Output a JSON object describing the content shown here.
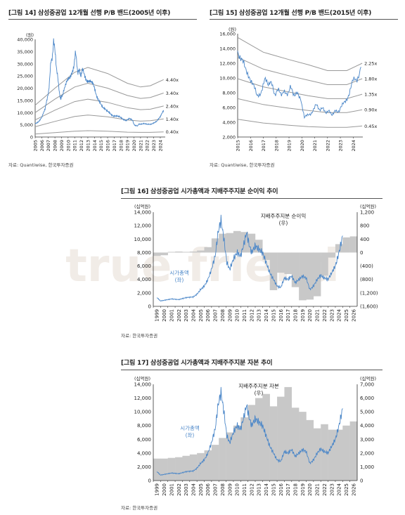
{
  "figures": [
    {
      "id": "f14",
      "title": "[그림 14] 삼성중공업 12개월 선행 P/B 밴드(2005년 이후)",
      "source": "자료: Quantiwise, 한국투자증권"
    },
    {
      "id": "f15",
      "title": "[그림 15] 삼성중공업 12개월 선행 P/B 밴드(2015년 이후)",
      "source": "자료: Quantiwise, 한국투자증권"
    },
    {
      "id": "f16",
      "title": "[그림 16] 삼성중공업 시가총액과 지배주주지분 순이익 추이",
      "source": "자료: 한국투자증권"
    },
    {
      "id": "f17",
      "title": "[그림 17] 삼성중공업 시가총액과 지배주주지분 자본 추이",
      "source": "자료: 한국투자증권"
    }
  ],
  "watermark": "true friend",
  "colors": {
    "price": "#4a86c8",
    "band": "#999999",
    "bar": "#c8c8c8",
    "axis": "#333333",
    "text": "#222222"
  },
  "chart_data": [
    {
      "id": "f14",
      "type": "line",
      "unit": "(원)",
      "ylim": [
        0,
        40000
      ],
      "yticks": [
        "0",
        "5,000",
        "10,000",
        "15,000",
        "20,000",
        "25,000",
        "30,000",
        "35,000",
        "40,000"
      ],
      "xticks": [
        "2005",
        "2006",
        "2007",
        "2008",
        "2009",
        "2010",
        "2011",
        "2012",
        "2013",
        "2014",
        "2015",
        "2016",
        "2017",
        "2018",
        "2019",
        "2020",
        "2021",
        "2022",
        "2023",
        "2024"
      ],
      "xrange": [
        2005,
        2024.75
      ],
      "bands": [
        {
          "name": "4.40x",
          "x": [
            2005,
            2008,
            2011,
            2013,
            2016,
            2019,
            2021,
            2022.5,
            2024.5
          ],
          "y": [
            13000,
            20000,
            26500,
            28500,
            26000,
            22000,
            20500,
            21000,
            23500
          ]
        },
        {
          "name": "3.40x",
          "x": [
            2005,
            2008,
            2011,
            2013,
            2016,
            2019,
            2021,
            2022.5,
            2024.5
          ],
          "y": [
            10000,
            15500,
            20500,
            22000,
            20000,
            17000,
            15800,
            16200,
            18000
          ]
        },
        {
          "name": "2.40x",
          "x": [
            2005,
            2008,
            2011,
            2013,
            2016,
            2019,
            2021,
            2022.5,
            2024.5
          ],
          "y": [
            7000,
            11000,
            14500,
            15500,
            14200,
            12000,
            11200,
            11400,
            12700
          ]
        },
        {
          "name": "1.40x",
          "x": [
            2005,
            2008,
            2011,
            2013,
            2016,
            2019,
            2021,
            2022.5,
            2024.5
          ],
          "y": [
            4200,
            6400,
            8400,
            9000,
            8300,
            7000,
            6500,
            6700,
            7400
          ]
        },
        {
          "name": "0.40x",
          "x": [
            2005,
            2008,
            2011,
            2013,
            2016,
            2019,
            2021,
            2022.5,
            2024.5
          ],
          "y": [
            1200,
            1800,
            2400,
            2600,
            2400,
            2000,
            1900,
            1900,
            2100
          ]
        }
      ],
      "price": {
        "x": [
          2005,
          2005.5,
          2006,
          2006.5,
          2007,
          2007.4,
          2007.8,
          2008.1,
          2008.5,
          2008.9,
          2009.3,
          2009.8,
          2010.3,
          2010.8,
          2011.1,
          2011.5,
          2011.9,
          2012.3,
          2012.8,
          2013.3,
          2013.8,
          2014.3,
          2014.8,
          2015.3,
          2015.8,
          2016.3,
          2016.8,
          2017.3,
          2017.8,
          2018.3,
          2018.8,
          2019.3,
          2019.8,
          2020.2,
          2020.6,
          2021,
          2021.5,
          2022,
          2022.5,
          2023,
          2023.5,
          2024,
          2024.5
        ],
        "y": [
          5500,
          6500,
          8000,
          11000,
          18000,
          30000,
          38000,
          33000,
          22000,
          15000,
          19000,
          22000,
          24000,
          29000,
          34000,
          27000,
          26000,
          27000,
          24000,
          23000,
          21000,
          17000,
          15000,
          12000,
          10500,
          10000,
          9000,
          8500,
          8000,
          7500,
          7000,
          7500,
          6500,
          4500,
          4800,
          5500,
          5500,
          5000,
          5200,
          6000,
          6500,
          8000,
          11000
        ]
      }
    },
    {
      "id": "f15",
      "type": "line",
      "unit": "(원)",
      "ylim": [
        2000,
        16000
      ],
      "yticks": [
        "2,000",
        "4,000",
        "6,000",
        "8,000",
        "10,000",
        "12,000",
        "14,000",
        "16,000"
      ],
      "xticks": [
        "2015",
        "2016",
        "2017",
        "2018",
        "2019",
        "2020",
        "2021",
        "2022",
        "2023",
        "2024"
      ],
      "xrange": [
        2015,
        2024.75
      ],
      "bands": [
        {
          "name": "2.25x",
          "x": [
            2015,
            2017,
            2019,
            2020.5,
            2022,
            2023.5,
            2024.7
          ],
          "y": [
            15500,
            13500,
            12500,
            11800,
            11000,
            11000,
            12000
          ]
        },
        {
          "name": "1.80x",
          "x": [
            2015,
            2017,
            2019,
            2020.5,
            2022,
            2023.5,
            2024.7
          ],
          "y": [
            12800,
            11200,
            10300,
            9700,
            9100,
            9100,
            9900
          ]
        },
        {
          "name": "1.35x",
          "x": [
            2015,
            2017,
            2019,
            2020.5,
            2022,
            2023.5,
            2024.7
          ],
          "y": [
            9900,
            8800,
            8100,
            7600,
            7200,
            7200,
            7800
          ]
        },
        {
          "name": "0.90x",
          "x": [
            2015,
            2017,
            2019,
            2020.5,
            2022,
            2023.5,
            2024.7
          ],
          "y": [
            7200,
            6400,
            5900,
            5600,
            5300,
            5300,
            5700
          ]
        },
        {
          "name": "0.45x",
          "x": [
            2015,
            2017,
            2019,
            2020.5,
            2022,
            2023.5,
            2024.7
          ],
          "y": [
            4400,
            3900,
            3600,
            3400,
            3300,
            3300,
            3500
          ]
        }
      ],
      "price": {
        "x": [
          2015,
          2015.3,
          2015.6,
          2015.9,
          2016.2,
          2016.5,
          2016.8,
          2017.1,
          2017.5,
          2017.9,
          2018.3,
          2018.7,
          2019.1,
          2019.5,
          2019.9,
          2020.2,
          2020.5,
          2020.8,
          2021.1,
          2021.5,
          2021.9,
          2022.3,
          2022.7,
          2023.1,
          2023.4,
          2023.7,
          2024,
          2024.3,
          2024.6
        ],
        "y": [
          14000,
          12500,
          11000,
          10500,
          9000,
          7500,
          8200,
          9500,
          9500,
          8000,
          8200,
          7800,
          8500,
          7800,
          7500,
          4500,
          5000,
          5500,
          6200,
          5800,
          5500,
          5200,
          5400,
          6000,
          7000,
          8000,
          9500,
          10000,
          11500
        ]
      }
    },
    {
      "id": "f16",
      "type": "line+bar",
      "left_axis": {
        "unit": "(십억원)",
        "ylim": [
          0,
          14000
        ],
        "ticks": [
          "0",
          "2,000",
          "4,000",
          "6,000",
          "8,000",
          "10,000",
          "12,000",
          "14,000"
        ]
      },
      "right_axis": {
        "unit": "(십억원)",
        "ylim": [
          -1600,
          1200
        ],
        "ticks": [
          "(1,600)",
          "(1,200)",
          "(800)",
          "(400)",
          "0",
          "400",
          "800",
          "1,200"
        ]
      },
      "categories": [
        "1999",
        "2000",
        "2001",
        "2002",
        "2003",
        "2004",
        "2005",
        "2006",
        "2007",
        "2008",
        "2009",
        "2010",
        "2011",
        "2012",
        "2013",
        "2014",
        "2015",
        "2016",
        "2017",
        "2018",
        "2019",
        "2020",
        "2021",
        "2022",
        "2023",
        "2024",
        "2025",
        "2026"
      ],
      "bars": {
        "name": "지배주주지분 순이익 (우)",
        "values": [
          -100,
          -80,
          20,
          30,
          20,
          30,
          60,
          160,
          420,
          560,
          580,
          640,
          610,
          560,
          380,
          -220,
          -1120,
          -600,
          -640,
          -1030,
          -1420,
          -1400,
          -1300,
          -690,
          -150,
          250,
          450,
          480
        ]
      },
      "line": {
        "name": "시가총액 (좌)",
        "x": [
          1999,
          1999.5,
          2000,
          2001,
          2002,
          2003,
          2004,
          2004.5,
          2005,
          2005.5,
          2006,
          2006.5,
          2007,
          2007.4,
          2007.8,
          2008.2,
          2008.6,
          2009,
          2009.5,
          2010,
          2010.5,
          2011,
          2011.3,
          2011.7,
          2012,
          2012.5,
          2013,
          2013.5,
          2014,
          2014.5,
          2015,
          2015.5,
          2016,
          2016.5,
          2017,
          2017.5,
          2018,
          2018.5,
          2019,
          2019.5,
          2020,
          2020.5,
          2021,
          2021.5,
          2022,
          2022.5,
          2023,
          2023.5,
          2024,
          2024.5
        ],
        "y": [
          1300,
          800,
          900,
          1100,
          1000,
          1300,
          1400,
          1800,
          2500,
          3000,
          4000,
          5500,
          7500,
          11000,
          12800,
          10000,
          6500,
          5500,
          7000,
          8000,
          7500,
          9500,
          11000,
          9000,
          8000,
          9000,
          8500,
          8000,
          6500,
          5000,
          4000,
          3000,
          2800,
          4200,
          4000,
          4500,
          3500,
          4000,
          4500,
          4200,
          2500,
          3000,
          4000,
          4600,
          4200,
          4000,
          5000,
          6000,
          8000,
          10500
        ]
      }
    },
    {
      "id": "f17",
      "type": "line+bar",
      "left_axis": {
        "unit": "(십억원)",
        "ylim": [
          0,
          14000
        ],
        "ticks": [
          "0",
          "2,000",
          "4,000",
          "6,000",
          "8,000",
          "10,000",
          "12,000",
          "14,000"
        ]
      },
      "right_axis": {
        "unit": "(십억원)",
        "ylim": [
          0,
          7000
        ],
        "ticks": [
          "0",
          "1,000",
          "2,000",
          "3,000",
          "4,000",
          "5,000",
          "6,000",
          "7,000"
        ]
      },
      "categories": [
        "1999",
        "2000",
        "2001",
        "2002",
        "2003",
        "2004",
        "2005",
        "2006",
        "2007",
        "2008",
        "2009",
        "2010",
        "2011",
        "2012",
        "2013",
        "2014",
        "2015",
        "2016",
        "2017",
        "2018",
        "2019",
        "2020",
        "2021",
        "2022",
        "2023",
        "2024",
        "2025",
        "2026"
      ],
      "bars": {
        "name": "지배주주지분 자본 (우)",
        "values": [
          1600,
          1600,
          1650,
          1700,
          1800,
          1900,
          2000,
          2200,
          2600,
          3100,
          3500,
          4000,
          4600,
          5500,
          6000,
          6300,
          5400,
          6100,
          6800,
          5300,
          5000,
          4400,
          3800,
          4100,
          3700,
          3700,
          4000,
          4300
        ]
      },
      "line": {
        "name": "시가총액 (좌)",
        "x": [
          1999,
          1999.5,
          2000,
          2001,
          2002,
          2003,
          2004,
          2004.5,
          2005,
          2005.5,
          2006,
          2006.5,
          2007,
          2007.4,
          2007.8,
          2008.2,
          2008.6,
          2009,
          2009.5,
          2010,
          2010.5,
          2011,
          2011.3,
          2011.7,
          2012,
          2012.5,
          2013,
          2013.5,
          2014,
          2014.5,
          2015,
          2015.5,
          2016,
          2016.5,
          2017,
          2017.5,
          2018,
          2018.5,
          2019,
          2019.5,
          2020,
          2020.5,
          2021,
          2021.5,
          2022,
          2022.5,
          2023,
          2023.5,
          2024,
          2024.5
        ],
        "y": [
          1300,
          800,
          900,
          1100,
          1000,
          1300,
          1400,
          1800,
          2500,
          3000,
          4000,
          5500,
          7500,
          11000,
          12800,
          10000,
          6500,
          5500,
          7000,
          8000,
          7500,
          9500,
          11000,
          9000,
          8000,
          9000,
          8500,
          8000,
          6500,
          5000,
          4000,
          3000,
          2800,
          4200,
          4000,
          4500,
          3500,
          4000,
          4500,
          4200,
          2500,
          3000,
          4000,
          4600,
          4200,
          4000,
          5000,
          6000,
          8000,
          10500
        ]
      }
    }
  ]
}
